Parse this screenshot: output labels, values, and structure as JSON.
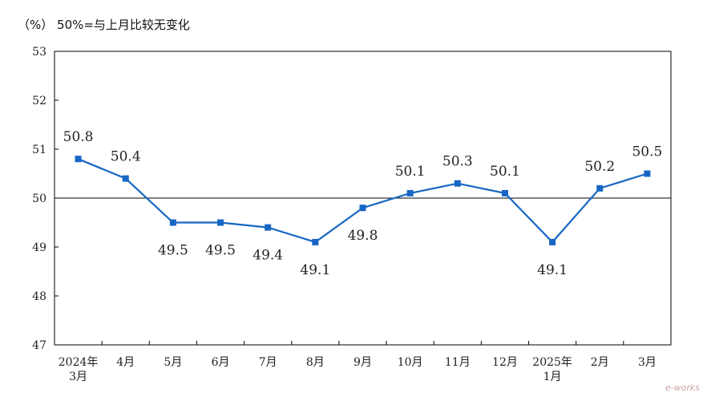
{
  "unit_note": "（%）  50%=与上月比较无变化",
  "watermark": "e-works",
  "chart_data": {
    "type": "line",
    "title": "",
    "xlabel": "",
    "ylabel": "",
    "ylim": [
      47,
      53
    ],
    "yticks": [
      "47",
      "48",
      "49",
      "50",
      "51",
      "52",
      "53"
    ],
    "reference_line": 50,
    "color": "#1766c4",
    "categories": [
      [
        "2024年",
        "3月"
      ],
      [
        "4月"
      ],
      [
        "5月"
      ],
      [
        "6月"
      ],
      [
        "7月"
      ],
      [
        "8月"
      ],
      [
        "9月"
      ],
      [
        "10月"
      ],
      [
        "11月"
      ],
      [
        "12月"
      ],
      [
        "2025年",
        "1月"
      ],
      [
        "2月"
      ],
      [
        "3月"
      ]
    ],
    "values": [
      50.8,
      50.4,
      49.5,
      49.5,
      49.4,
      49.1,
      49.8,
      50.1,
      50.3,
      50.1,
      49.1,
      50.2,
      50.5
    ],
    "value_labels": [
      "50.8",
      "50.4",
      "49.5",
      "49.5",
      "49.4",
      "49.1",
      "49.8",
      "50.1",
      "50.3",
      "50.1",
      "49.1",
      "50.2",
      "50.5"
    ]
  }
}
